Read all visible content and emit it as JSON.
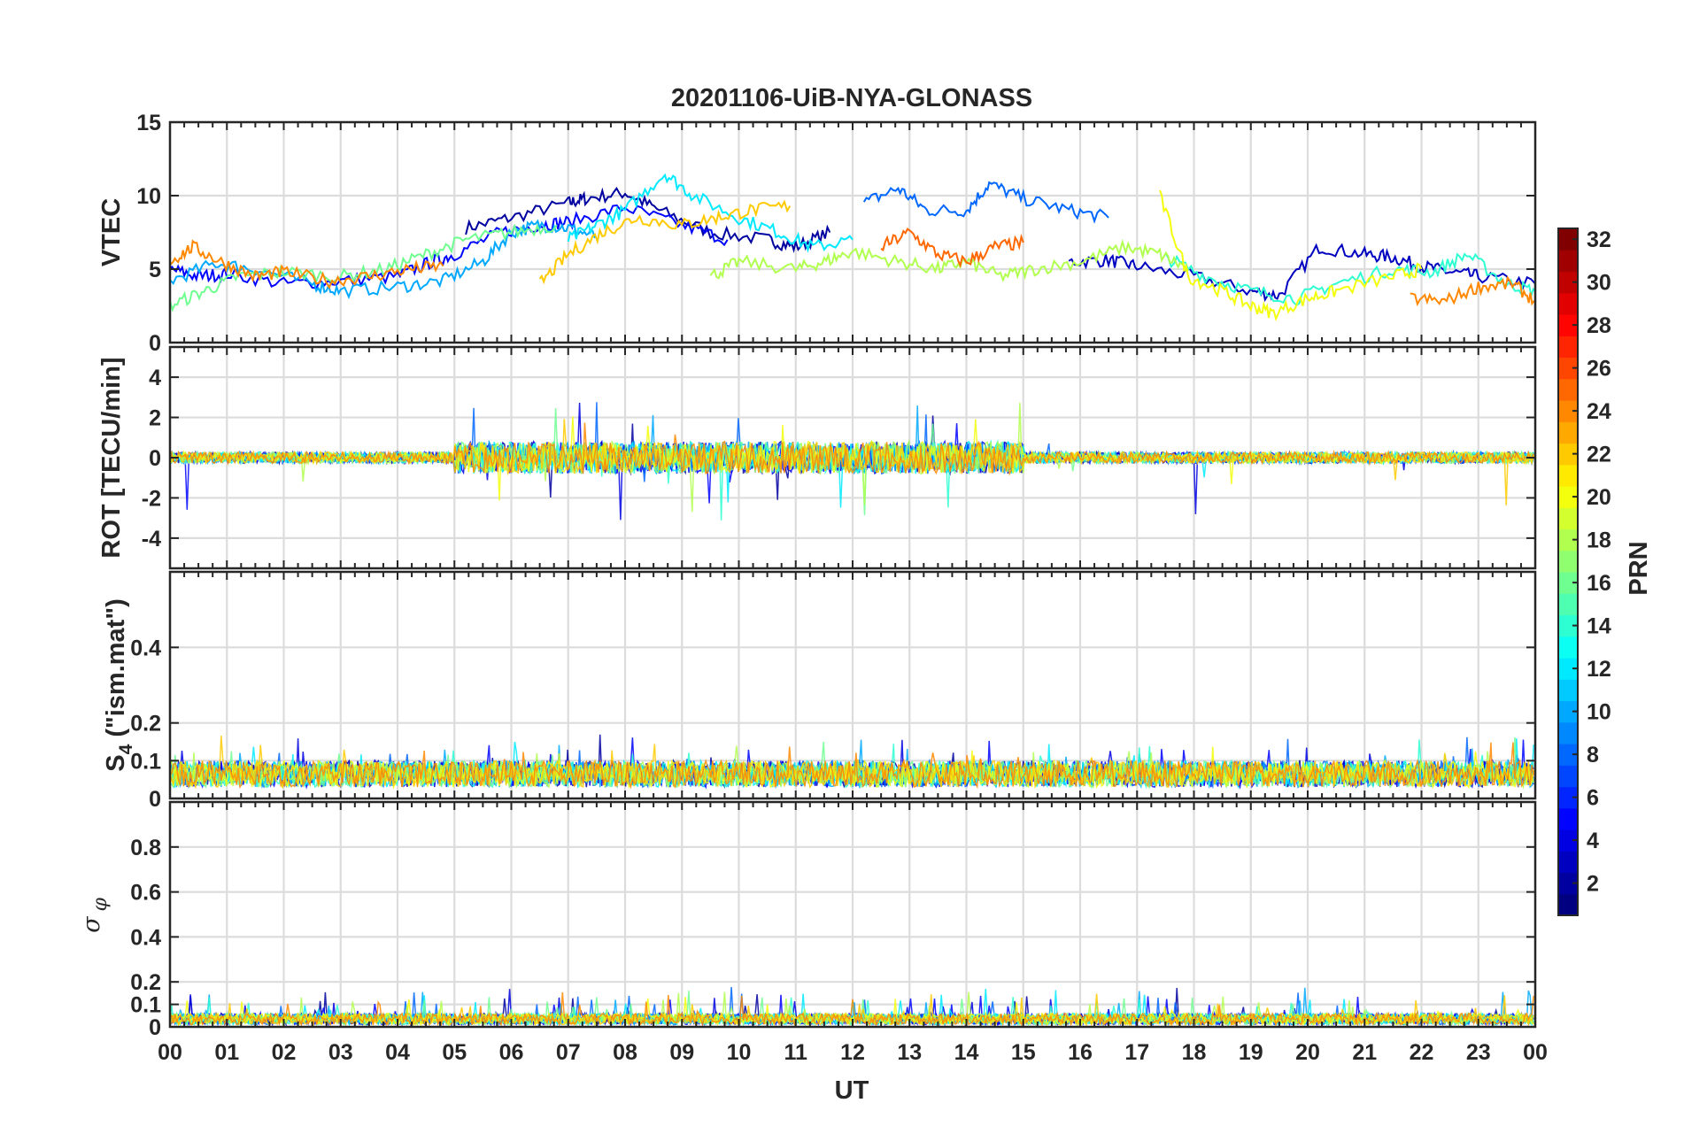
{
  "chart_data": {
    "type": "line",
    "title": "20201106-UiB-NYA-GLONASS",
    "xlabel": "UT",
    "x_tick_labels": [
      "00",
      "01",
      "02",
      "03",
      "04",
      "05",
      "06",
      "07",
      "08",
      "09",
      "10",
      "11",
      "12",
      "13",
      "14",
      "15",
      "16",
      "17",
      "18",
      "19",
      "20",
      "21",
      "22",
      "23",
      "00"
    ],
    "xlim": [
      0,
      24
    ],
    "grid": true,
    "panels": [
      {
        "ylabel": "VTEC",
        "ylim": [
          0,
          15
        ],
        "yticks": [
          0,
          5,
          10,
          15
        ],
        "ytick_labels": [
          "0",
          "5",
          "10",
          "15"
        ],
        "series": [
          {
            "prn": 2,
            "x": [
              5.2,
              6,
              7,
              7.3,
              8,
              8.6,
              9.5,
              10.5,
              11,
              11.6
            ],
            "values": [
              7.8,
              8.5,
              9.5,
              9.8,
              10.2,
              9,
              7.5,
              7,
              6.5,
              7.5
            ]
          },
          {
            "prn": 3,
            "x": [
              15.8,
              16.5,
              17,
              18,
              19,
              19.5,
              20.2,
              21,
              21.5,
              22,
              22.5,
              23,
              24
            ],
            "values": [
              5.5,
              5.6,
              5.2,
              4.5,
              3.5,
              3.2,
              6.5,
              6,
              5.8,
              5.2,
              4.8,
              4.5,
              4
            ]
          },
          {
            "prn": 5,
            "x": [
              0,
              0.5,
              1,
              2,
              3,
              4,
              4.6,
              5,
              5.8,
              6.5,
              7,
              8,
              9,
              9.8
            ],
            "values": [
              5,
              4.5,
              4.7,
              4,
              4.2,
              4.5,
              5.5,
              6,
              7.5,
              8,
              8.2,
              9.2,
              8,
              7
            ]
          },
          {
            "prn": 8,
            "x": [
              12.2,
              12.8,
              13.3,
              14,
              14.4,
              15,
              15.8,
              16.5
            ],
            "values": [
              9.5,
              10.5,
              9,
              9,
              10.8,
              9.8,
              9,
              8.5
            ]
          },
          {
            "prn": 10,
            "x": [
              0,
              0.8,
              1.5,
              2.5,
              3,
              4,
              4.8,
              5.5,
              6,
              6.5,
              7,
              7.5
            ],
            "values": [
              4.2,
              5.4,
              5,
              4,
              3.5,
              3.8,
              4.2,
              5.5,
              7.5,
              8,
              7.8,
              7.2
            ]
          },
          {
            "prn": 12,
            "x": [
              7,
              7.5,
              8,
              8.7,
              9.2,
              10,
              10.7,
              11.3,
              12
            ],
            "values": [
              7,
              8,
              9,
              11.5,
              10,
              8.5,
              7.5,
              6.5,
              7
            ]
          },
          {
            "prn": 14,
            "x": [
              17.5,
              18.2,
              19,
              19.8,
              20.5,
              21.5,
              22.2,
              22.8,
              23.5,
              24
            ],
            "values": [
              5.8,
              4.5,
              3.5,
              3,
              4,
              5,
              4.8,
              6,
              4,
              3.5
            ]
          },
          {
            "prn": 16,
            "x": [
              0,
              0.6,
              1.2,
              2,
              3,
              3.8,
              4.5,
              5.2,
              6,
              6.8
            ],
            "values": [
              2.5,
              3.5,
              4.5,
              4.8,
              4.5,
              5,
              6,
              7,
              7.5,
              8
            ]
          },
          {
            "prn": 18,
            "x": [
              9.5,
              10,
              11,
              11.5,
              12,
              12.8,
              13.5,
              14,
              14.6,
              15.2,
              16,
              16.8,
              17.4,
              17.9
            ],
            "values": [
              4.5,
              5.5,
              5,
              5.5,
              6.2,
              5.5,
              5,
              5.5,
              4.5,
              5,
              5.5,
              6.5,
              6,
              5
            ]
          },
          {
            "prn": 20,
            "x": [
              17.4,
              17.9,
              18.5,
              19,
              19.4,
              20,
              20.5,
              21.5,
              22
            ],
            "values": [
              10,
              4.5,
              3.5,
              2.5,
              2,
              3,
              3.5,
              4.5,
              5
            ]
          },
          {
            "prn": 22,
            "x": [
              6.5,
              7,
              7.6,
              8.2,
              9,
              9.6,
              10.2,
              10.9
            ],
            "values": [
              4,
              6,
              7.5,
              8.5,
              8,
              8.5,
              9,
              9.3
            ]
          },
          {
            "prn": 24,
            "x": [
              0,
              0.4,
              0.9,
              1.5,
              2,
              2.8,
              3.5,
              4.2,
              4.8
            ],
            "values": [
              5.5,
              6.5,
              5.5,
              4.5,
              4.8,
              4.2,
              4.5,
              5,
              5.2
            ]
          },
          {
            "prn": 25,
            "x": [
              12.5,
              13,
              13.5,
              14,
              14.5,
              15
            ],
            "values": [
              6.5,
              7.5,
              6,
              5.5,
              6.5,
              6.8
            ]
          },
          {
            "prn": 24,
            "x": [
              21.8,
              22.4,
              23,
              23.6,
              24
            ],
            "values": [
              3,
              2.8,
              3.8,
              4,
              2.8
            ]
          }
        ]
      },
      {
        "ylabel": "ROT [TECU/min]",
        "ylim": [
          -5.5,
          5.5
        ],
        "yticks": [
          -4,
          -2,
          0,
          2,
          4
        ],
        "ytick_labels": [
          "-4",
          "-2",
          "0",
          "2",
          "4"
        ]
      },
      {
        "ylabel": "S4 (\"ism.mat\")",
        "ylabel_main": "S",
        "ylabel_sub": "4",
        "ylabel_rest": " (\"ism.mat\")",
        "ylim": [
          0,
          0.6
        ],
        "yticks": [
          0,
          0.1,
          0.2,
          0.4
        ],
        "ytick_labels": [
          "0",
          "0.1",
          "0.2",
          "0.4"
        ]
      },
      {
        "ylabel": "σ φ",
        "ylabel_main": "σ",
        "ylabel_sub": "φ",
        "ylim": [
          0,
          1
        ],
        "yticks": [
          0,
          0.1,
          0.2,
          0.4,
          0.6,
          0.8
        ],
        "ytick_labels": [
          "0",
          "0.1",
          "0.2",
          "0.4",
          "0.6",
          "0.8"
        ]
      }
    ],
    "colorbar": {
      "label": "PRN",
      "range": [
        1,
        32
      ],
      "colormap": "jet",
      "tick_labels": [
        "2",
        "4",
        "6",
        "8",
        "10",
        "12",
        "14",
        "16",
        "18",
        "20",
        "22",
        "24",
        "26",
        "28",
        "30",
        "32"
      ]
    }
  }
}
